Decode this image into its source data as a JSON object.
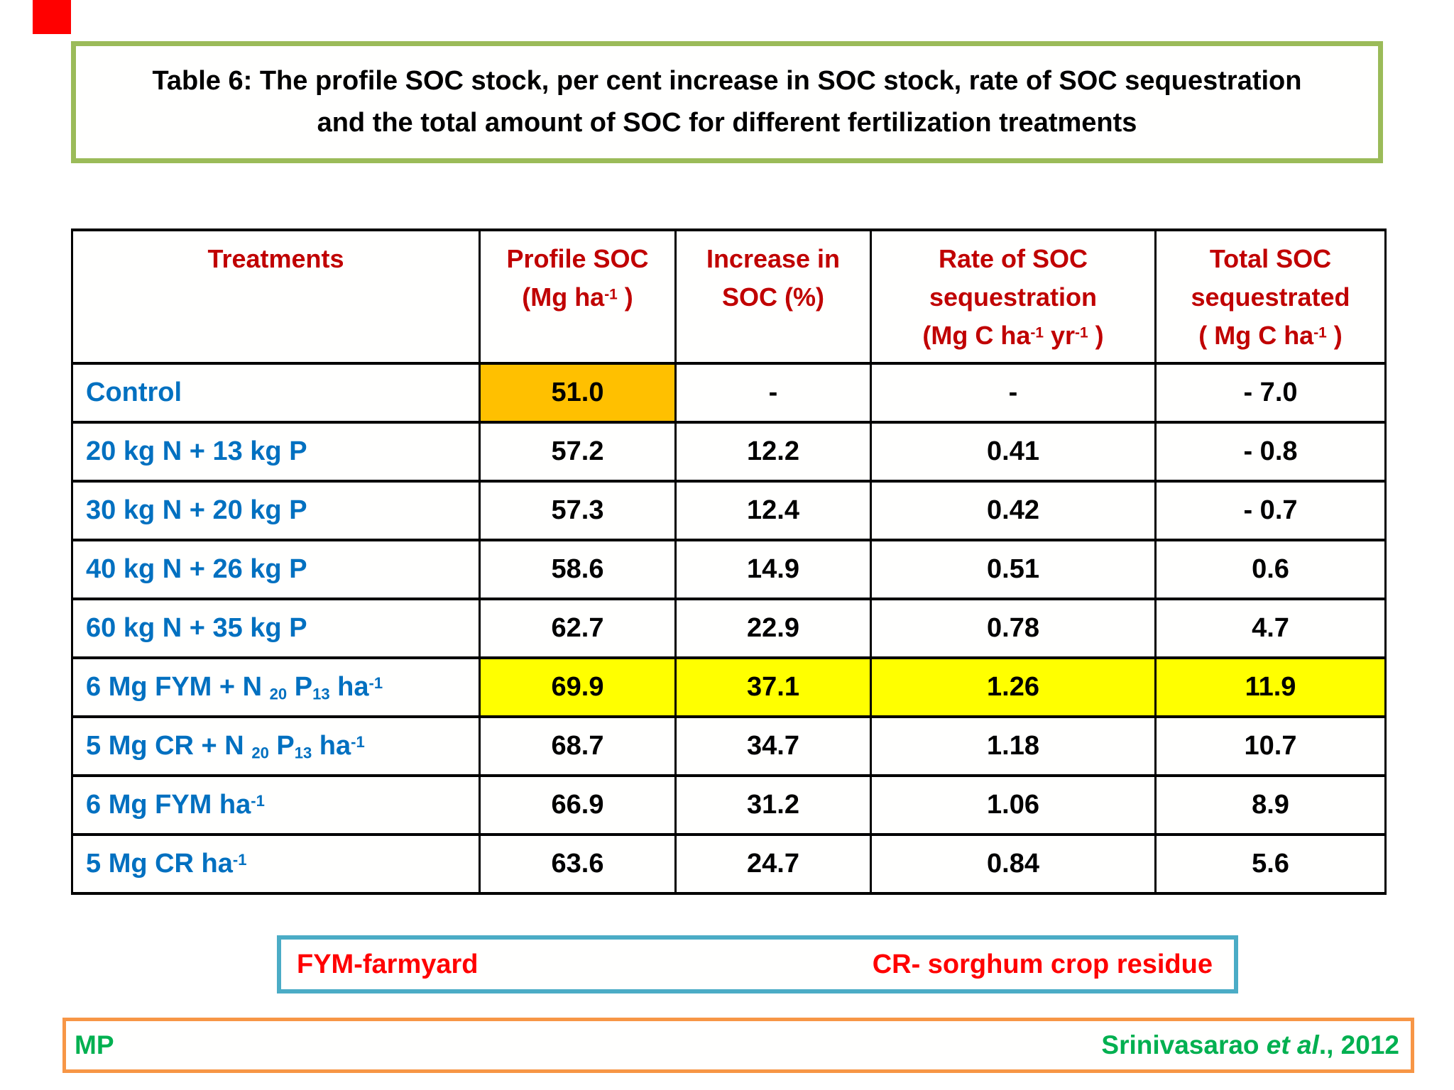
{
  "title": {
    "line1": "Table 6: The profile SOC stock, per cent increase in SOC stock, rate of SOC sequestration",
    "line2": "and the total amount of SOC for different fertilization treatments",
    "border_color": "#9bbb59",
    "text_color": "#000000"
  },
  "decor": {
    "red_corner_mark_color": "#ff0000"
  },
  "table": {
    "border_color": "#000000",
    "header_text_color": "#c00000",
    "treatment_text_color": "#0070c0",
    "value_text_color": "#000000",
    "highlight_colors": {
      "orange": "#ffc000",
      "yellow": "#ffff00"
    },
    "columns": [
      {
        "lines": [
          "Treatments"
        ]
      },
      {
        "lines": [
          "Profile SOC",
          "(Mg ha^{-1} )"
        ]
      },
      {
        "lines": [
          "Increase in",
          "SOC (%)"
        ]
      },
      {
        "lines": [
          "Rate of SOC",
          "sequestration",
          "(Mg C ha^{-1} yr^{-1} )"
        ]
      },
      {
        "lines": [
          "Total SOC",
          "sequestrated",
          "( Mg C ha^{-1} )"
        ]
      }
    ],
    "rows": [
      {
        "treatment": "Control",
        "values": [
          "51.0",
          "-",
          "-",
          "- 7.0"
        ],
        "value_highlights": [
          "orange",
          null,
          null,
          null
        ]
      },
      {
        "treatment": "20 kg N + 13 kg P",
        "values": [
          "57.2",
          "12.2",
          "0.41",
          "- 0.8"
        ],
        "value_highlights": [
          null,
          null,
          null,
          null
        ]
      },
      {
        "treatment": "30 kg N + 20 kg P",
        "values": [
          "57.3",
          "12.4",
          "0.42",
          "- 0.7"
        ],
        "value_highlights": [
          null,
          null,
          null,
          null
        ]
      },
      {
        "treatment": "40 kg N + 26 kg P",
        "values": [
          "58.6",
          "14.9",
          "0.51",
          "0.6"
        ],
        "value_highlights": [
          null,
          null,
          null,
          null
        ]
      },
      {
        "treatment": "60 kg N + 35 kg P",
        "values": [
          "62.7",
          "22.9",
          "0.78",
          "4.7"
        ],
        "value_highlights": [
          null,
          null,
          null,
          null
        ]
      },
      {
        "treatment": "6 Mg FYM + N _{20} P_{13} ha^{-1}",
        "values": [
          "69.9",
          "37.1",
          "1.26",
          "11.9"
        ],
        "value_highlights": [
          "yellow",
          "yellow",
          "yellow",
          "yellow"
        ]
      },
      {
        "treatment": "5 Mg CR + N _{20} P_{13} ha^{-1}",
        "values": [
          "68.7",
          "34.7",
          "1.18",
          "10.7"
        ],
        "value_highlights": [
          null,
          null,
          null,
          null
        ]
      },
      {
        "treatment": "6 Mg FYM ha^{-1}",
        "values": [
          "66.9",
          "31.2",
          "1.06",
          "8.9"
        ],
        "value_highlights": [
          null,
          null,
          null,
          null
        ]
      },
      {
        "treatment": "5 Mg CR ha^{-1}",
        "values": [
          "63.6",
          "24.7",
          "0.84",
          "5.6"
        ],
        "value_highlights": [
          null,
          null,
          null,
          null
        ]
      }
    ]
  },
  "legend": {
    "border_color": "#4bacc6",
    "text_color": "#ff0000",
    "left": "FYM-farmyard",
    "right": "CR- sorghum crop residue"
  },
  "footer": {
    "border_color": "#f79646",
    "text_color": "#00b050",
    "left": "MP",
    "right_parts": [
      {
        "text": "Srinivasarao ",
        "italic": false
      },
      {
        "text": "et al",
        "italic": true
      },
      {
        "text": "., 2012",
        "italic": false
      }
    ]
  }
}
